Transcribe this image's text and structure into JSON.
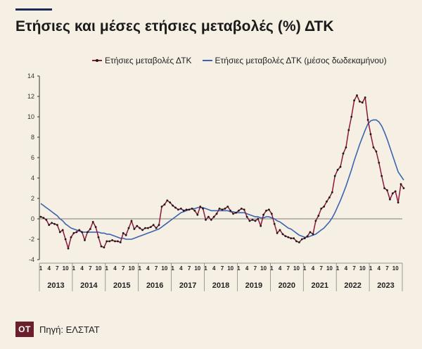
{
  "header": {
    "title": "Ετήσιες και μέσες ετήσιες μεταβολές (%) ΔΤΚ"
  },
  "footer": {
    "logo_text": "OT",
    "source": "Πηγή: ΕΛΣΤΑΤ"
  },
  "colors": {
    "annual": "#8b1a3a",
    "average": "#3a64b0",
    "background": "#f6efe4",
    "axis": "#333333"
  },
  "chart_data": {
    "type": "line",
    "title": "Ετήσιες και μέσες ετήσιες μεταβολές (%) ΔΤΚ",
    "xlabel": "",
    "ylabel": "",
    "ylim": [
      -4,
      14
    ],
    "yticks": [
      -4,
      -2,
      0,
      2,
      4,
      6,
      8,
      10,
      12,
      14
    ],
    "month_tick_labels": [
      "1",
      "4",
      "7",
      "10"
    ],
    "year_labels": [
      "2013",
      "2014",
      "2015",
      "2016",
      "2017",
      "2018",
      "2019",
      "2020",
      "2021",
      "2022",
      "2023"
    ],
    "start": "2013-01",
    "grid": false,
    "legend_position": "top",
    "series": [
      {
        "name": "Ετήσιες μεταβολές ΔΤΚ",
        "markers": true,
        "values": [
          0.2,
          0.1,
          -0.1,
          -0.6,
          -0.4,
          -0.5,
          -0.6,
          -1.3,
          -1.1,
          -2.0,
          -2.9,
          -1.8,
          -1.4,
          -1.3,
          -1.1,
          -1.3,
          -2.1,
          -1.3,
          -1.0,
          -0.3,
          -0.8,
          -1.8,
          -2.7,
          -2.8,
          -2.2,
          -2.2,
          -2.1,
          -2.2,
          -2.2,
          -2.3,
          -1.4,
          -1.6,
          -0.9,
          -0.2,
          -1.0,
          -0.7,
          -0.9,
          -1.1,
          -0.9,
          -0.9,
          -0.8,
          -0.6,
          -0.9,
          -0.6,
          1.2,
          1.4,
          1.8,
          1.6,
          1.3,
          1.1,
          0.9,
          1.0,
          0.8,
          0.9,
          0.9,
          1.0,
          0.8,
          0.4,
          1.2,
          1.0,
          -0.1,
          0.2,
          -0.1,
          0.2,
          0.5,
          1.0,
          0.9,
          1.0,
          1.2,
          0.8,
          0.5,
          0.6,
          0.8,
          1.0,
          0.9,
          0.2,
          -0.2,
          -0.1,
          -0.2,
          0.0,
          -0.7,
          0.4,
          0.8,
          0.9,
          0.5,
          -0.5,
          -1.4,
          -1.1,
          -1.5,
          -1.7,
          -1.8,
          -1.9,
          -1.9,
          -2.2,
          -2.3,
          -2.0,
          -1.9,
          -1.7,
          -1.3,
          -1.5,
          -0.2,
          0.3,
          1.0,
          1.2,
          1.7,
          2.1,
          2.6,
          4.2,
          4.8,
          5.1,
          6.4,
          7.0,
          8.7,
          10.0,
          11.6,
          12.1,
          11.5,
          11.4,
          11.9,
          9.7,
          8.3,
          7.0,
          6.6,
          5.5,
          4.2,
          3.0,
          2.8,
          1.9,
          2.5,
          2.7,
          1.6,
          3.4,
          3.0
        ]
      },
      {
        "name": "Ετήσιες μεταβολές ΔΤΚ (μέσος δωδεκαμήνου)",
        "markers": false,
        "values": [
          1.5,
          1.3,
          1.1,
          0.9,
          0.7,
          0.5,
          0.3,
          0.0,
          -0.2,
          -0.5,
          -0.7,
          -0.9,
          -1.0,
          -1.1,
          -1.2,
          -1.3,
          -1.3,
          -1.3,
          -1.3,
          -1.3,
          -1.3,
          -1.3,
          -1.4,
          -1.4,
          -1.5,
          -1.5,
          -1.6,
          -1.7,
          -1.8,
          -1.9,
          -1.9,
          -2.0,
          -2.0,
          -2.0,
          -1.9,
          -1.8,
          -1.7,
          -1.6,
          -1.5,
          -1.4,
          -1.3,
          -1.2,
          -1.1,
          -1.0,
          -0.8,
          -0.6,
          -0.4,
          -0.2,
          0.0,
          0.2,
          0.4,
          0.6,
          0.7,
          0.8,
          0.9,
          1.0,
          1.0,
          1.1,
          1.1,
          1.1,
          1.0,
          0.9,
          0.8,
          0.8,
          0.8,
          0.8,
          0.8,
          0.8,
          0.8,
          0.7,
          0.7,
          0.6,
          0.6,
          0.6,
          0.6,
          0.5,
          0.4,
          0.3,
          0.2,
          0.2,
          0.1,
          0.1,
          0.2,
          0.2,
          0.1,
          0.0,
          -0.2,
          -0.3,
          -0.5,
          -0.7,
          -0.9,
          -1.0,
          -1.2,
          -1.4,
          -1.6,
          -1.7,
          -1.8,
          -1.8,
          -1.7,
          -1.6,
          -1.5,
          -1.3,
          -1.1,
          -0.9,
          -0.6,
          -0.3,
          0.1,
          0.6,
          1.2,
          1.8,
          2.5,
          3.2,
          4.0,
          4.8,
          5.7,
          6.5,
          7.3,
          8.0,
          8.7,
          9.3,
          9.6,
          9.7,
          9.7,
          9.5,
          9.1,
          8.5,
          7.8,
          7.0,
          6.2,
          5.4,
          4.6,
          4.2,
          3.8
        ]
      }
    ]
  }
}
